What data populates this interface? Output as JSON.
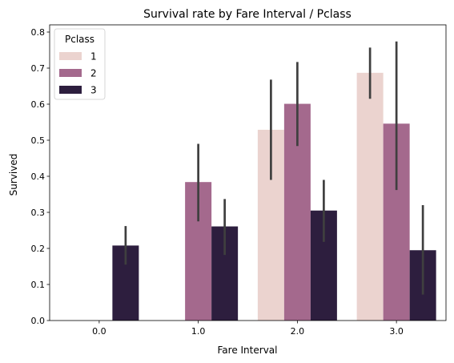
{
  "chart_data": {
    "type": "bar",
    "title": "Survival rate by Fare Interval / Pclass",
    "xlabel": "Fare Interval",
    "ylabel": "Survived",
    "categories": [
      "0.0",
      "1.0",
      "2.0",
      "3.0"
    ],
    "ylim": [
      0,
      0.82
    ],
    "yticks": [
      "0.0",
      "0.1",
      "0.2",
      "0.3",
      "0.4",
      "0.5",
      "0.6",
      "0.7",
      "0.8"
    ],
    "grid": false,
    "legend": {
      "title": "Pclass",
      "placement": "top-left"
    },
    "series": [
      {
        "name": "1",
        "color": "#ebd3cf",
        "values": [
          null,
          null,
          0.529,
          0.687
        ],
        "ci_low": [
          null,
          null,
          0.39,
          0.615
        ],
        "ci_high": [
          null,
          null,
          0.668,
          0.757
        ]
      },
      {
        "name": "2",
        "color": "#a4698d",
        "values": [
          null,
          0.384,
          0.601,
          0.546
        ],
        "ci_low": [
          null,
          0.275,
          0.484,
          0.362
        ],
        "ci_high": [
          null,
          0.49,
          0.717,
          0.774
        ]
      },
      {
        "name": "3",
        "color": "#2d1e3e",
        "values": [
          0.208,
          0.261,
          0.305,
          0.195
        ],
        "ci_low": [
          0.155,
          0.182,
          0.218,
          0.072
        ],
        "ci_high": [
          0.262,
          0.337,
          0.39,
          0.32
        ]
      }
    ],
    "errorbar_color": "#3f3f3f"
  }
}
